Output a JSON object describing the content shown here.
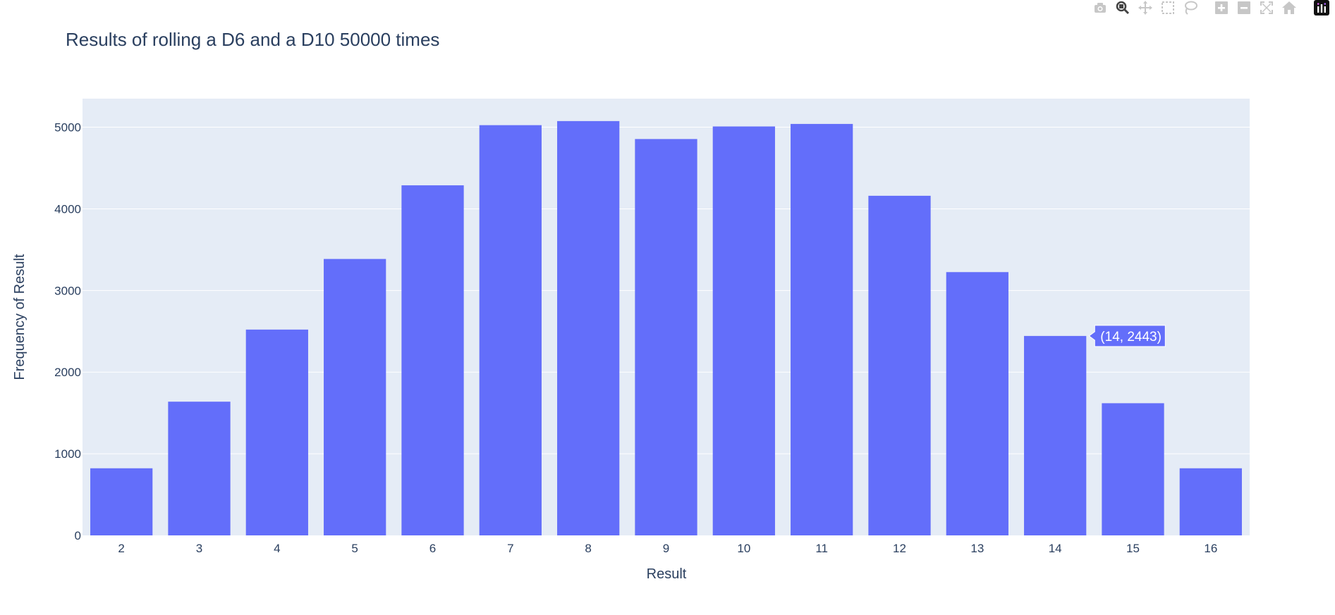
{
  "modebar": {
    "buttons": [
      {
        "name": "camera-icon",
        "group": 0
      },
      {
        "name": "zoom-icon",
        "group": 0,
        "active": true
      },
      {
        "name": "pan-icon",
        "group": 0
      },
      {
        "name": "box-select-icon",
        "group": 0
      },
      {
        "name": "lasso-select-icon",
        "group": 0
      },
      {
        "name": "zoom-in-icon",
        "group": 1
      },
      {
        "name": "zoom-out-icon",
        "group": 1
      },
      {
        "name": "autoscale-icon",
        "group": 1
      },
      {
        "name": "reset-axes-icon",
        "group": 1
      }
    ],
    "logo": "plotly-logo-icon",
    "icon_color": "#c7c7c7",
    "active_color": "#444444"
  },
  "chart_data": {
    "type": "bar",
    "title": "Results of rolling a D6 and a D10 50000 times",
    "xlabel": "Result",
    "ylabel": "Frequency of Result",
    "categories": [
      "2",
      "3",
      "4",
      "5",
      "6",
      "7",
      "8",
      "9",
      "10",
      "11",
      "12",
      "13",
      "14",
      "15",
      "16"
    ],
    "values": [
      822,
      1638,
      2521,
      3386,
      4288,
      5025,
      5075,
      4855,
      5009,
      5040,
      4160,
      3225,
      2443,
      1619,
      822
    ],
    "ylim": [
      0,
      5350
    ],
    "yticks": [
      "0",
      "1000",
      "2000",
      "3000",
      "4000",
      "5000"
    ],
    "ytick_values": [
      0,
      1000,
      2000,
      3000,
      4000,
      5000
    ],
    "grid": true,
    "bar_color": "#636efa",
    "plot_bg": "#e5ecf6",
    "grid_color": "#ffffff",
    "text_color": "#2a3f5f",
    "hover": {
      "category": "14",
      "label": "(14, 2443)"
    }
  }
}
